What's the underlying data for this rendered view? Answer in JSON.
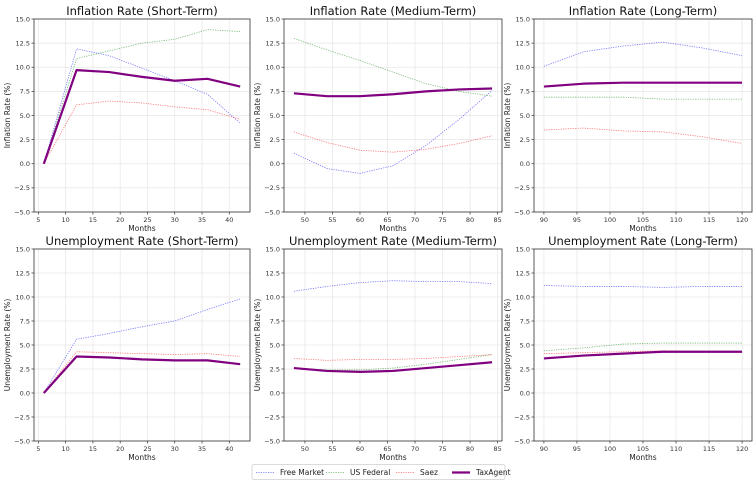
{
  "chart_data": [
    {
      "id": "inflation-short",
      "type": "line",
      "title": "Inflation Rate (Short-Term)",
      "xlabel": "Months",
      "ylabel": "Inflation Rate (%)",
      "x": [
        6,
        12,
        18,
        24,
        30,
        36,
        42
      ],
      "xlim": [
        4.2,
        43.8
      ],
      "xticks": [
        5,
        10,
        15,
        20,
        25,
        30,
        35,
        40
      ],
      "ylim": [
        -5,
        15
      ],
      "yticks": [
        -5.0,
        -2.5,
        0.0,
        2.5,
        5.0,
        7.5,
        10.0,
        12.5,
        15.0
      ],
      "grid": true,
      "series": [
        {
          "name": "Free Market",
          "values": [
            0,
            11.9,
            11.2,
            9.9,
            8.6,
            7.2,
            4.2
          ]
        },
        {
          "name": "US Federal",
          "values": [
            0,
            10.9,
            11.7,
            12.5,
            12.9,
            13.9,
            13.7
          ]
        },
        {
          "name": "Saez",
          "values": [
            0,
            6.1,
            6.5,
            6.3,
            5.9,
            5.6,
            4.6
          ]
        },
        {
          "name": "TaxAgent",
          "values": [
            0,
            9.7,
            9.5,
            9.0,
            8.6,
            8.8,
            8.0
          ]
        }
      ]
    },
    {
      "id": "inflation-medium",
      "type": "line",
      "title": "Inflation Rate (Medium-Term)",
      "xlabel": "Months",
      "ylabel": "Inflation Rate (%)",
      "x": [
        48,
        54,
        60,
        66,
        72,
        78,
        84
      ],
      "xlim": [
        46.2,
        85.8
      ],
      "xticks": [
        50,
        55,
        60,
        65,
        70,
        75,
        80,
        85
      ],
      "ylim": [
        -5,
        15
      ],
      "yticks": [
        -5.0,
        -2.5,
        0.0,
        2.5,
        5.0,
        7.5,
        10.0,
        12.5,
        15.0
      ],
      "grid": true,
      "series": [
        {
          "name": "Free Market",
          "values": [
            1.1,
            -0.5,
            -1.0,
            -0.2,
            1.9,
            4.6,
            7.6
          ]
        },
        {
          "name": "US Federal",
          "values": [
            13.0,
            11.8,
            10.7,
            9.5,
            8.3,
            7.5,
            7.0
          ]
        },
        {
          "name": "Saez",
          "values": [
            3.3,
            2.2,
            1.4,
            1.2,
            1.5,
            2.1,
            2.9
          ]
        },
        {
          "name": "TaxAgent",
          "values": [
            7.3,
            7.0,
            7.0,
            7.2,
            7.5,
            7.7,
            7.8
          ]
        }
      ]
    },
    {
      "id": "inflation-long",
      "type": "line",
      "title": "Inflation Rate (Long-Term)",
      "xlabel": "Months",
      "ylabel": "Inflation Rate (%)",
      "x": [
        90,
        96,
        102,
        108,
        114,
        120
      ],
      "xlim": [
        88.5,
        121.5
      ],
      "xticks": [
        90,
        95,
        100,
        105,
        110,
        115,
        120
      ],
      "ylim": [
        -5,
        15
      ],
      "yticks": [
        -5.0,
        -2.5,
        0.0,
        2.5,
        5.0,
        7.5,
        10.0,
        12.5,
        15.0
      ],
      "grid": true,
      "series": [
        {
          "name": "Free Market",
          "values": [
            10.1,
            11.6,
            12.2,
            12.6,
            12.0,
            11.2
          ]
        },
        {
          "name": "US Federal",
          "values": [
            6.9,
            6.9,
            6.9,
            6.7,
            6.7,
            6.7
          ]
        },
        {
          "name": "Saez",
          "values": [
            3.5,
            3.7,
            3.4,
            3.3,
            2.8,
            2.1
          ]
        },
        {
          "name": "TaxAgent",
          "values": [
            8.0,
            8.3,
            8.4,
            8.4,
            8.4,
            8.4
          ]
        }
      ]
    },
    {
      "id": "unemployment-short",
      "type": "line",
      "title": "Unemployment Rate (Short-Term)",
      "xlabel": "Months",
      "ylabel": "Unemployment Rate (%)",
      "x": [
        6,
        12,
        18,
        24,
        30,
        36,
        42
      ],
      "xlim": [
        4.2,
        43.8
      ],
      "xticks": [
        5,
        10,
        15,
        20,
        25,
        30,
        35,
        40
      ],
      "ylim": [
        -5,
        15
      ],
      "yticks": [
        -5.0,
        -2.5,
        0.0,
        2.5,
        5.0,
        7.5,
        10.0,
        12.5,
        15.0
      ],
      "grid": true,
      "series": [
        {
          "name": "Free Market",
          "values": [
            0,
            5.6,
            6.2,
            6.9,
            7.5,
            8.7,
            9.8
          ]
        },
        {
          "name": "US Federal",
          "values": [
            0,
            3.8,
            3.7,
            3.5,
            3.4,
            3.4,
            3.0
          ]
        },
        {
          "name": "Saez",
          "values": [
            0,
            4.3,
            4.2,
            4.1,
            4.0,
            4.1,
            3.8
          ]
        },
        {
          "name": "TaxAgent",
          "values": [
            0,
            3.8,
            3.7,
            3.5,
            3.4,
            3.4,
            3.0
          ]
        }
      ]
    },
    {
      "id": "unemployment-medium",
      "type": "line",
      "title": "Unemployment Rate (Medium-Term)",
      "xlabel": "Months",
      "ylabel": "Unemployment Rate (%)",
      "x": [
        48,
        54,
        60,
        66,
        72,
        78,
        84
      ],
      "xlim": [
        46.2,
        85.8
      ],
      "xticks": [
        50,
        55,
        60,
        65,
        70,
        75,
        80,
        85
      ],
      "ylim": [
        -5,
        15
      ],
      "yticks": [
        -5.0,
        -2.5,
        0.0,
        2.5,
        5.0,
        7.5,
        10.0,
        12.5,
        15.0
      ],
      "grid": true,
      "series": [
        {
          "name": "Free Market",
          "values": [
            10.6,
            11.1,
            11.5,
            11.7,
            11.6,
            11.6,
            11.4
          ]
        },
        {
          "name": "US Federal",
          "values": [
            2.6,
            2.4,
            2.4,
            2.6,
            3.0,
            3.5,
            4.0
          ]
        },
        {
          "name": "Saez",
          "values": [
            3.6,
            3.4,
            3.5,
            3.5,
            3.6,
            3.8,
            4.0
          ]
        },
        {
          "name": "TaxAgent",
          "values": [
            2.6,
            2.3,
            2.2,
            2.3,
            2.6,
            2.9,
            3.2
          ]
        }
      ]
    },
    {
      "id": "unemployment-long",
      "type": "line",
      "title": "Unemployment Rate (Long-Term)",
      "xlabel": "Months",
      "ylabel": "Unemployment Rate (%)",
      "x": [
        90,
        96,
        102,
        108,
        114,
        120
      ],
      "xlim": [
        88.5,
        121.5
      ],
      "xticks": [
        90,
        95,
        100,
        105,
        110,
        115,
        120
      ],
      "ylim": [
        -5,
        15
      ],
      "yticks": [
        -5.0,
        -2.5,
        0.0,
        2.5,
        5.0,
        7.5,
        10.0,
        12.5,
        15.0
      ],
      "grid": true,
      "series": [
        {
          "name": "Free Market",
          "values": [
            11.2,
            11.1,
            11.1,
            11.0,
            11.1,
            11.1
          ]
        },
        {
          "name": "US Federal",
          "values": [
            4.4,
            4.7,
            5.1,
            5.2,
            5.2,
            5.2
          ]
        },
        {
          "name": "Saez",
          "values": [
            4.1,
            4.2,
            4.3,
            4.4,
            4.3,
            4.3
          ]
        },
        {
          "name": "TaxAgent",
          "values": [
            3.6,
            3.9,
            4.1,
            4.3,
            4.3,
            4.3
          ]
        }
      ]
    }
  ],
  "legend": {
    "position": "bottom-center",
    "entries": [
      {
        "name": "Free Market",
        "color": "#0000ff",
        "style": "dotted"
      },
      {
        "name": "US Federal",
        "color": "#008000",
        "style": "dotted"
      },
      {
        "name": "Saez",
        "color": "#ff0000",
        "style": "dotted"
      },
      {
        "name": "TaxAgent",
        "color": "#800080",
        "style": "solid"
      }
    ]
  }
}
